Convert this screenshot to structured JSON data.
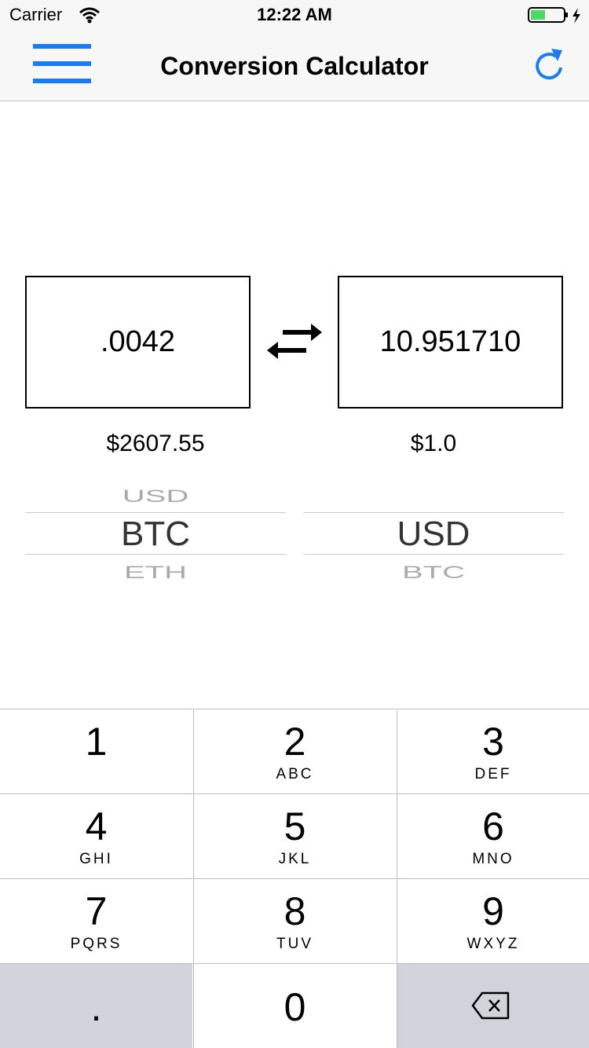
{
  "status_bar": {
    "carrier": "Carrier",
    "time": "12:22 AM"
  },
  "nav": {
    "title": "Conversion Calculator"
  },
  "converter": {
    "left": {
      "amount": ".0042",
      "price": "$2607.55",
      "picker": {
        "above": "USD",
        "selected": "BTC",
        "below": "ETH"
      }
    },
    "right": {
      "amount": "10.951710",
      "price": "$1.0",
      "picker": {
        "selected": "USD",
        "below": "BTC"
      }
    }
  },
  "keypad": {
    "keys": [
      {
        "digit": "1"
      },
      {
        "digit": "2",
        "letters": "ABC"
      },
      {
        "digit": "3",
        "letters": "DEF"
      },
      {
        "digit": "4",
        "letters": "GHI"
      },
      {
        "digit": "5",
        "letters": "JKL"
      },
      {
        "digit": "6",
        "letters": "MNO"
      },
      {
        "digit": "7",
        "letters": "PQRS"
      },
      {
        "digit": "8",
        "letters": "TUV"
      },
      {
        "digit": "9",
        "letters": "WXYZ"
      },
      {
        "digit": "."
      },
      {
        "digit": "0"
      }
    ]
  }
}
